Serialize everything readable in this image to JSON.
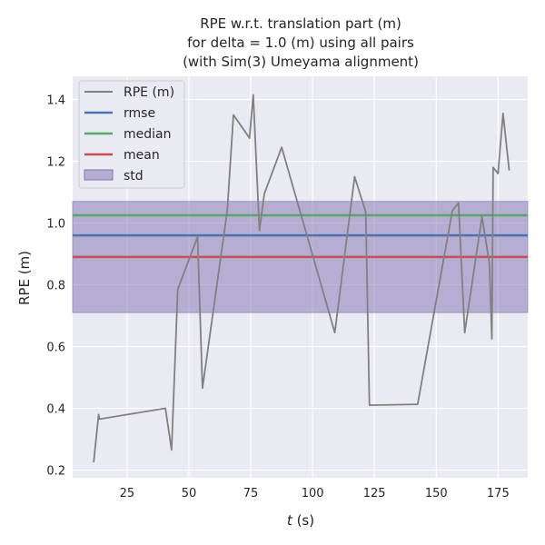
{
  "chart_data": {
    "type": "line",
    "title_lines": [
      "RPE w.r.t. translation part (m)",
      "for delta = 1.0 (m) using all pairs",
      "(with Sim(3) Umeyama alignment)"
    ],
    "xlabel_italic": "t",
    "xlabel_rest": " (s)",
    "ylabel": "RPE (m)",
    "xlim": [
      3,
      187
    ],
    "ylim": [
      0.175,
      1.475
    ],
    "xticks": [
      25,
      50,
      75,
      100,
      125,
      150,
      175
    ],
    "yticks": [
      0.2,
      0.4,
      0.6,
      0.8,
      1.0,
      1.2,
      1.4
    ],
    "ytick_labels": [
      "0.2",
      "0.4",
      "0.6",
      "0.8",
      "1.0",
      "1.2",
      "1.4"
    ],
    "grid": true,
    "legend_position": "top-left",
    "series": [
      {
        "name": "RPE (m)",
        "color": "#808080",
        "x": [
          11.5,
          13.5,
          13.8,
          40.5,
          43,
          45.5,
          53.5,
          55.5,
          65.5,
          68,
          74.5,
          76,
          78.5,
          80.5,
          87.5,
          109,
          117,
          121.5,
          123,
          142.5,
          156.5,
          159,
          161.5,
          168.5,
          171.5,
          172.5,
          173,
          175,
          177,
          179.5
        ],
        "y": [
          0.225,
          0.38,
          0.365,
          0.4,
          0.265,
          0.785,
          0.955,
          0.465,
          1.04,
          1.35,
          1.275,
          1.415,
          0.975,
          1.095,
          1.245,
          0.645,
          1.15,
          1.035,
          0.41,
          0.413,
          1.04,
          1.065,
          0.645,
          1.02,
          0.87,
          0.625,
          1.18,
          1.16,
          1.355,
          1.17
        ]
      }
    ],
    "stats": {
      "rmse": {
        "name": "rmse",
        "value": 0.96,
        "color": "#4c72b0"
      },
      "median": {
        "name": "median",
        "value": 1.025,
        "color": "#55a868"
      },
      "mean": {
        "name": "mean",
        "value": 0.89,
        "color": "#c44e52"
      },
      "std": {
        "name": "std",
        "range": [
          0.71,
          1.07
        ],
        "color": "#8172b2"
      }
    },
    "colors": {
      "plot_background": "#eaeaf2",
      "grid": "#ffffff"
    }
  }
}
